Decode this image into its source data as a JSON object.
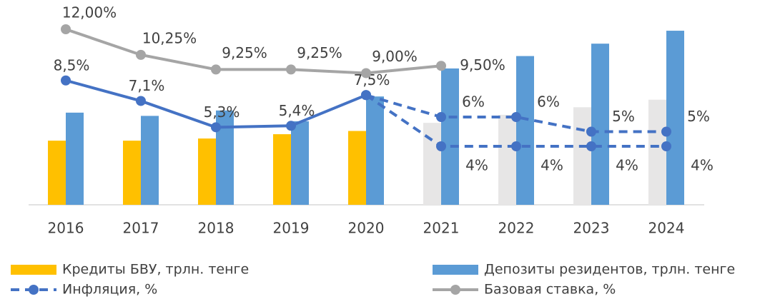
{
  "chart_data": {
    "type": "bar",
    "categories": [
      "2016",
      "2017",
      "2018",
      "2019",
      "2020",
      "2021",
      "2022",
      "2023",
      "2024"
    ],
    "ylim": [
      0,
      38
    ],
    "y2lim": [
      0,
      14
    ],
    "series": [
      {
        "name": "Кредиты БВУ, трлн. тенге",
        "color": "#ffc000",
        "point_colors": [
          "#ffc000",
          "#ffc000",
          "#ffc000",
          "#ffc000",
          "#ffc000",
          "#e7e6e6",
          "#e7e6e6",
          "#e7e6e6",
          "#e7e6e6"
        ],
        "values": [
          11.9,
          11.9,
          12.3,
          13.1,
          13.7,
          15.2,
          16.7,
          18.1,
          19.5
        ]
      },
      {
        "name": "Депозиты резидентов, трлн. тенге",
        "color": "#5b9bd5",
        "values": [
          17.1,
          16.5,
          17.5,
          15.5,
          20.1,
          25.3,
          27.6,
          29.9,
          32.3
        ]
      },
      {
        "name": "Инфляция, %",
        "type": "line",
        "axis": "y2",
        "color": "#4472c4",
        "dashed": false,
        "legend_dashed": true,
        "values": [
          8.5,
          7.1,
          5.3,
          5.4,
          7.5,
          null,
          null,
          null,
          null
        ],
        "value_labels": [
          "8,5%",
          "7,1%",
          "5,3%",
          "5,4%",
          "7,5%",
          null,
          null,
          null,
          null
        ]
      },
      {
        "type": "line",
        "axis": "y2",
        "color": "#4472c4",
        "dashed": true,
        "values": [
          null,
          null,
          null,
          null,
          7.5,
          6,
          6,
          5,
          5
        ],
        "value_labels": [
          null,
          null,
          null,
          null,
          null,
          "6%",
          "6%",
          "5%",
          "5%"
        ]
      },
      {
        "type": "line",
        "axis": "y2",
        "color": "#4472c4",
        "dashed": true,
        "values": [
          null,
          null,
          null,
          null,
          7.5,
          4,
          4,
          4,
          4
        ],
        "value_labels": [
          null,
          null,
          null,
          null,
          null,
          "4%",
          "4%",
          "4%",
          "4%"
        ]
      },
      {
        "name": "Базовая ставка, %",
        "type": "line",
        "axis": "y2",
        "color": "#a5a5a5",
        "dashed": false,
        "values": [
          12.0,
          10.25,
          9.25,
          9.25,
          9.0,
          9.5,
          null,
          null,
          null
        ],
        "value_labels": [
          "12,00%",
          "10,25%",
          "9,25%",
          "9,25%",
          "9,00%",
          "9,50%",
          null,
          null,
          null
        ]
      }
    ]
  }
}
